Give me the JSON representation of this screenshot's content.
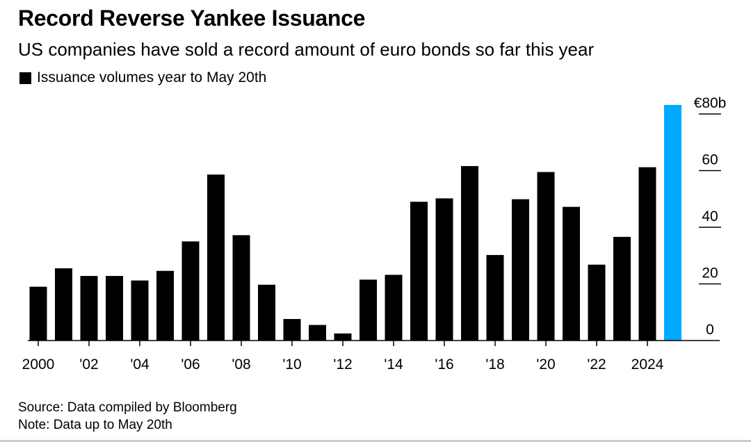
{
  "header": {
    "title": "Record Reverse Yankee Issuance",
    "subtitle": "US companies have sold a record amount of euro bonds so far this year"
  },
  "footer": {
    "source": "Source: Data compiled by Bloomberg",
    "note": "Note: Data up to May 20th"
  },
  "colors": {
    "bar": "#000000",
    "highlight": "#00aaff"
  },
  "chart_data": {
    "type": "bar",
    "title": "Record Reverse Yankee Issuance",
    "subtitle": "US companies have sold a record amount of euro bonds so far this year",
    "ylim": [
      0,
      80
    ],
    "yaxis_position": "right",
    "ytick_values": [
      0,
      20,
      40,
      60,
      80
    ],
    "ytick_labels": [
      "0",
      "20",
      "40",
      "60",
      "€80b"
    ],
    "xtick_values": [
      2000,
      2002,
      2004,
      2006,
      2008,
      2010,
      2012,
      2014,
      2016,
      2018,
      2020,
      2022,
      2024
    ],
    "xtick_labels": [
      "2000",
      "'02",
      "'04",
      "'06",
      "'08",
      "'10",
      "'12",
      "'14",
      "'16",
      "'18",
      "'20",
      "'22",
      "2024"
    ],
    "legend": "top-left",
    "grid": false,
    "series": [
      {
        "name": "Issuance volumes year to May 20th",
        "x": [
          2000,
          2001,
          2002,
          2003,
          2004,
          2005,
          2006,
          2007,
          2008,
          2009,
          2010,
          2011,
          2012,
          2013,
          2014,
          2015,
          2016,
          2017,
          2018,
          2019,
          2020,
          2021,
          2022,
          2023,
          2024,
          2025
        ],
        "values": [
          19,
          25.5,
          22.8,
          22.8,
          21.2,
          24.6,
          35,
          58.6,
          37.2,
          19.7,
          7.6,
          5.5,
          2.5,
          21.5,
          23.2,
          49,
          50.2,
          61.6,
          30.2,
          49.9,
          59.5,
          47.2,
          26.8,
          36.6,
          61.2,
          83.2
        ],
        "highlight_x": 2025
      }
    ]
  }
}
